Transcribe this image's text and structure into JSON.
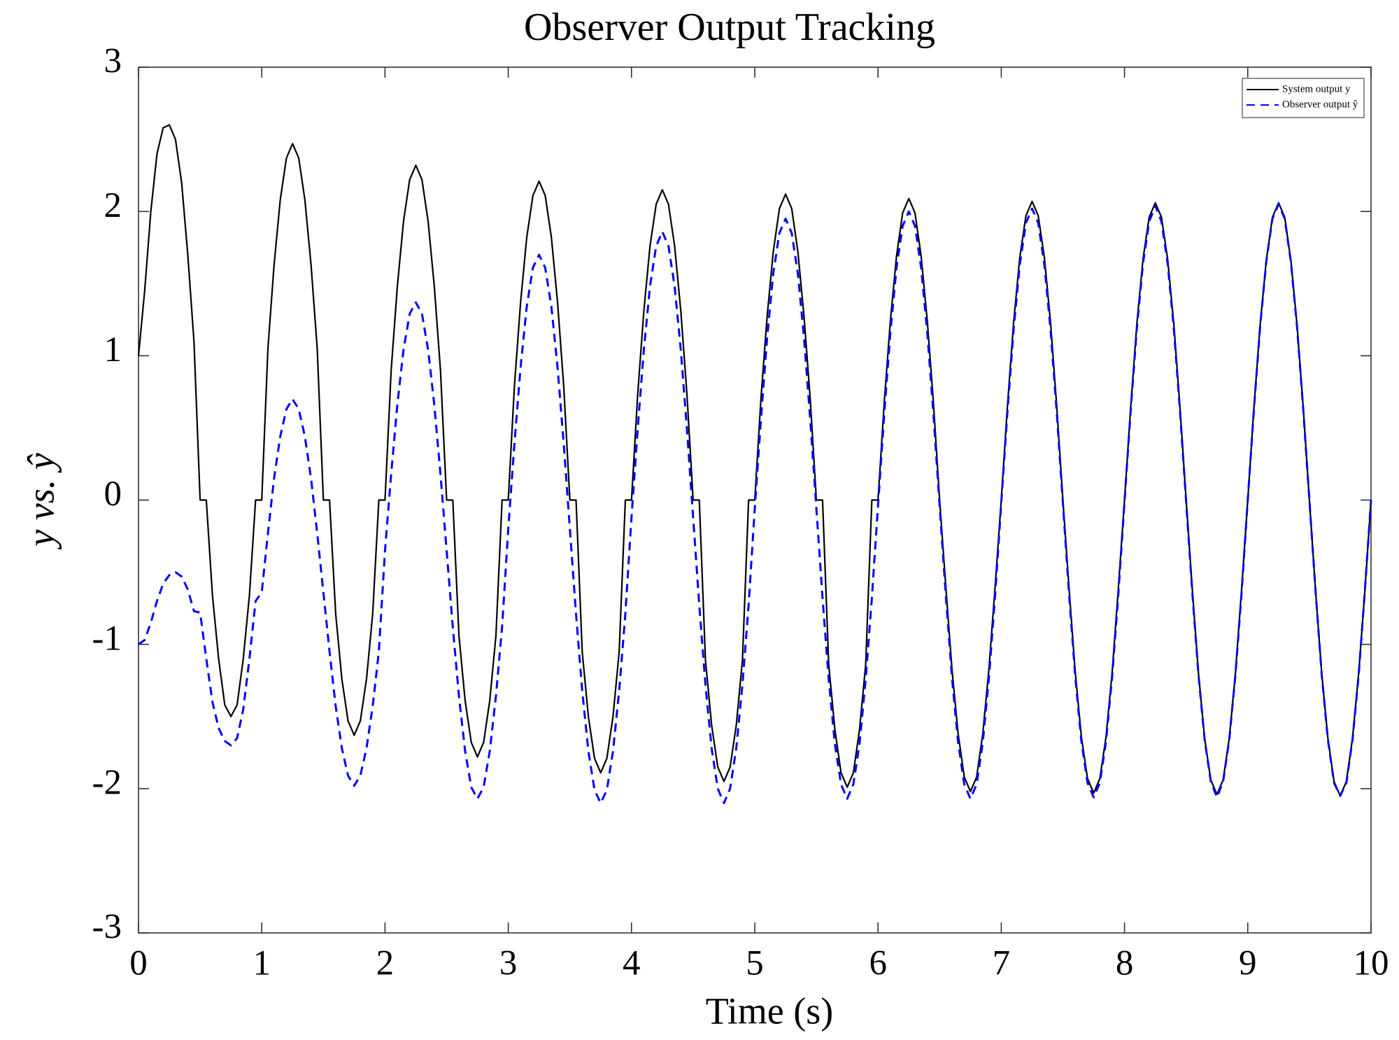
{
  "chart_data": {
    "type": "line",
    "title": "Observer Output Tracking",
    "xlabel": "Time (s)",
    "ylabel": "y vs. ŷ",
    "xlim": [
      0,
      10
    ],
    "ylim": [
      -3,
      3
    ],
    "xticks": [
      0,
      1,
      2,
      3,
      4,
      5,
      6,
      7,
      8,
      9,
      10
    ],
    "yticks": [
      -3,
      -2,
      -1,
      0,
      1,
      2,
      3
    ],
    "grid": false,
    "legend": "northeast",
    "x": [
      0,
      0.05,
      0.1,
      0.15,
      0.2,
      0.25,
      0.3,
      0.35,
      0.4,
      0.45,
      0.5,
      0.55,
      0.6,
      0.65,
      0.7,
      0.75,
      0.8,
      0.85,
      0.9,
      0.95,
      1,
      1.05,
      1.1,
      1.15,
      1.2,
      1.25,
      1.3,
      1.35,
      1.4,
      1.45,
      1.5,
      1.55,
      1.6,
      1.65,
      1.7,
      1.75,
      1.8,
      1.85,
      1.9,
      1.95,
      2,
      2.05,
      2.1,
      2.15,
      2.2,
      2.25,
      2.3,
      2.35,
      2.4,
      2.45,
      2.5,
      2.55,
      2.6,
      2.65,
      2.7,
      2.75,
      2.8,
      2.85,
      2.9,
      2.95,
      3,
      3.05,
      3.1,
      3.15,
      3.2,
      3.25,
      3.3,
      3.35,
      3.4,
      3.45,
      3.5,
      3.55,
      3.6,
      3.65,
      3.7,
      3.75,
      3.8,
      3.85,
      3.9,
      3.95,
      4,
      4.05,
      4.1,
      4.15,
      4.2,
      4.25,
      4.3,
      4.35,
      4.4,
      4.45,
      4.5,
      4.55,
      4.6,
      4.65,
      4.7,
      4.75,
      4.8,
      4.85,
      4.9,
      4.95,
      5,
      5.05,
      5.1,
      5.15,
      5.2,
      5.25,
      5.3,
      5.35,
      5.4,
      5.45,
      5.5,
      5.55,
      5.6,
      5.65,
      5.7,
      5.75,
      5.8,
      5.85,
      5.9,
      5.95,
      6,
      6.05,
      6.1,
      6.15,
      6.2,
      6.25,
      6.3,
      6.35,
      6.4,
      6.45,
      6.5,
      6.55,
      6.6,
      6.65,
      6.7,
      6.75,
      6.8,
      6.85,
      6.9,
      6.95,
      7,
      7.05,
      7.1,
      7.15,
      7.2,
      7.25,
      7.3,
      7.35,
      7.4,
      7.45,
      7.5,
      7.55,
      7.6,
      7.65,
      7.7,
      7.75,
      7.8,
      7.85,
      7.9,
      7.95,
      8,
      8.05,
      8.1,
      8.15,
      8.2,
      8.25,
      8.3,
      8.35,
      8.4,
      8.45,
      8.5,
      8.55,
      8.6,
      8.65,
      8.7,
      8.75,
      8.8,
      8.85,
      8.9,
      8.95,
      9,
      9.05,
      9.1,
      9.15,
      9.2,
      9.25,
      9.3,
      9.35,
      9.4,
      9.45,
      9.5,
      9.55,
      9.6,
      9.65,
      9.7,
      9.75,
      9.8,
      9.85,
      9.9,
      9.95,
      10
    ],
    "series": [
      {
        "name": "System output y",
        "color": "#000000",
        "linestyle": "solid",
        "values": [
          1,
          1.45,
          2,
          2.4,
          2.58,
          2.6,
          2.5,
          2.2,
          1.7,
          1.1,
          0,
          0,
          -0.66,
          -1.1,
          -1.42,
          -1.5,
          -1.42,
          -1.1,
          -0.66,
          0,
          0,
          1.05,
          1.63,
          2.08,
          2.37,
          2.47,
          2.37,
          2.08,
          1.63,
          1.05,
          0,
          0,
          -0.79,
          -1.24,
          -1.53,
          -1.63,
          -1.53,
          -1.24,
          -0.79,
          0,
          0,
          0.9,
          1.48,
          1.93,
          2.22,
          2.32,
          2.22,
          1.93,
          1.48,
          0.9,
          0,
          0,
          -0.94,
          -1.39,
          -1.68,
          -1.78,
          -1.68,
          -1.39,
          -0.94,
          0,
          0,
          0.79,
          1.37,
          1.82,
          2.11,
          2.21,
          2.11,
          1.82,
          1.37,
          0.79,
          0,
          0,
          -1.05,
          -1.5,
          -1.79,
          -1.89,
          -1.79,
          -1.5,
          -1.05,
          0,
          0,
          0.73,
          1.31,
          1.76,
          2.05,
          2.15,
          2.05,
          1.76,
          1.31,
          0.73,
          0,
          0,
          -1.11,
          -1.56,
          -1.85,
          -1.95,
          -1.85,
          -1.56,
          -1.11,
          0,
          0,
          0.7,
          1.27,
          1.72,
          2.02,
          2.12,
          2.02,
          1.72,
          1.27,
          0.7,
          0,
          0,
          -1.14,
          -1.59,
          -1.89,
          -1.99,
          -1.89,
          -1.59,
          -1.14,
          0,
          0,
          0.67,
          1.24,
          1.69,
          1.99,
          2.09,
          1.99,
          1.69,
          1.24,
          0.67,
          0,
          -0.6,
          -1.17,
          -1.62,
          -1.92,
          -2.02,
          -1.92,
          -1.62,
          -1.17,
          -0.6,
          0,
          0.65,
          1.23,
          1.68,
          1.97,
          2.07,
          1.97,
          1.68,
          1.23,
          0.65,
          0,
          -0.61,
          -1.19,
          -1.64,
          -1.93,
          -2.03,
          -1.93,
          -1.64,
          -1.19,
          -0.61,
          0,
          0.64,
          1.22,
          1.67,
          1.96,
          2.06,
          1.96,
          1.67,
          1.22,
          0.64,
          0,
          -0.62,
          -1.2,
          -1.65,
          -1.94,
          -2.04,
          -1.94,
          -1.65,
          -1.2,
          -0.62,
          0,
          0.64,
          1.21,
          1.66,
          1.96,
          2.06,
          1.96,
          1.66,
          1.21,
          0.64,
          0,
          -0.63,
          -1.2,
          -1.65,
          -1.95,
          -2.05,
          -1.95,
          -1.65,
          -1.2,
          -0.63,
          0
        ]
      },
      {
        "name": "Observer output ŷ",
        "color": "#0000ff",
        "linestyle": "dashed",
        "values": [
          -1,
          -0.97,
          -0.85,
          -0.7,
          -0.58,
          -0.52,
          -0.5,
          -0.53,
          -0.62,
          -0.77,
          -0.78,
          -1.1,
          -1.4,
          -1.58,
          -1.67,
          -1.7,
          -1.65,
          -1.45,
          -1.1,
          -0.7,
          -0.64,
          -0.23,
          0.15,
          0.44,
          0.63,
          0.7,
          0.63,
          0.44,
          0.15,
          -0.23,
          -0.64,
          -1.05,
          -1.43,
          -1.72,
          -1.91,
          -1.98,
          -1.91,
          -1.72,
          -1.43,
          -1.05,
          -0.35,
          0.18,
          0.66,
          1.04,
          1.29,
          1.37,
          1.29,
          1.04,
          0.66,
          0.18,
          -0.35,
          -0.88,
          -1.36,
          -1.74,
          -1.99,
          -2.07,
          -1.99,
          -1.74,
          -1.36,
          -0.88,
          -0.2,
          0.39,
          0.92,
          1.34,
          1.61,
          1.7,
          1.61,
          1.34,
          0.92,
          0.39,
          -0.2,
          -0.79,
          -1.32,
          -1.74,
          -2.01,
          -2.1,
          -2.01,
          -1.74,
          -1.32,
          -0.79,
          -0.12,
          0.49,
          1.04,
          1.48,
          1.76,
          1.86,
          1.76,
          1.48,
          1.04,
          0.49,
          -0.12,
          -0.73,
          -1.28,
          -1.72,
          -2,
          -2.1,
          -2,
          -1.72,
          -1.28,
          -0.73,
          -0.06,
          0.56,
          1.12,
          1.57,
          1.85,
          1.95,
          1.85,
          1.57,
          1.12,
          0.56,
          -0.06,
          -0.68,
          -1.24,
          -1.69,
          -1.97,
          -2.07,
          -1.97,
          -1.69,
          -1.24,
          -0.68,
          -0.04,
          0.59,
          1.16,
          1.61,
          1.9,
          2,
          1.9,
          1.61,
          1.16,
          0.59,
          -0.04,
          -0.66,
          -1.23,
          -1.68,
          -1.97,
          -2.07,
          -1.97,
          -1.68,
          -1.23,
          -0.66,
          -0.02,
          0.61,
          1.18,
          1.63,
          1.92,
          2.02,
          1.92,
          1.63,
          1.18,
          0.61,
          -0.02,
          -0.65,
          -1.22,
          -1.67,
          -1.96,
          -2.06,
          -1.96,
          -1.67,
          -1.22,
          -0.65,
          -0.01,
          0.62,
          1.19,
          1.64,
          1.93,
          2.04,
          1.93,
          1.64,
          1.19,
          0.62,
          -0.01,
          -0.64,
          -1.21,
          -1.66,
          -1.95,
          -2.06,
          -1.95,
          -1.66,
          -1.21,
          -0.64,
          0,
          0.63,
          1.2,
          1.65,
          1.95,
          2.05,
          1.95,
          1.65,
          1.2,
          0.63,
          0,
          -0.63,
          -1.21,
          -1.66,
          -1.96,
          -2.05,
          -1.96,
          -1.66,
          -1.21,
          -0.63,
          0
        ]
      }
    ]
  }
}
